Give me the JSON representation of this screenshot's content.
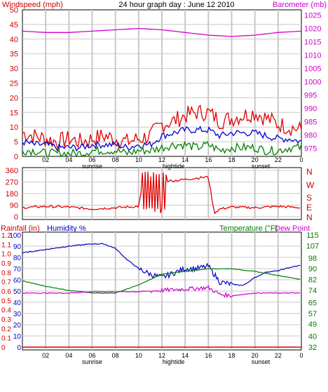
{
  "title": "24 hour graph day : June 12 2010",
  "panels": [
    {
      "id": "wind",
      "left_label": "Windspeed (mph)",
      "right_label": "Barometer (mb)"
    },
    {
      "id": "direction",
      "right_labels": [
        "N",
        "W",
        "S",
        "E",
        "N"
      ]
    },
    {
      "id": "rain",
      "left_label_rain": "Rainfall (in)",
      "left_label_humidity": "Humidity %",
      "right_label_temp": "Temperature (°F)",
      "right_label_dew": "Dew Point"
    }
  ],
  "colors": {
    "wind_axis": "#d00000",
    "baro_axis": "#d000d0",
    "humidity_axis": "#0000c0",
    "temp_axis": "#008000",
    "dew": "#d000d0",
    "gust": "#e00000",
    "speed": "#0000d0",
    "avg": "#008000",
    "grid": "#c8c8c8",
    "frame": "#000000"
  },
  "chart_data": [
    {
      "type": "line",
      "x_ticks": [
        "02",
        "04",
        "06",
        "08",
        "10",
        "12",
        "14",
        "16",
        "18",
        "20",
        "22",
        "0"
      ],
      "x_events": [
        {
          "label": "sunrise",
          "x_hour": 6
        },
        {
          "label": "hightide",
          "x_hour": 13
        },
        {
          "label": "sunset",
          "x_hour": 20.5
        }
      ],
      "y_left": {
        "label": "Windspeed (mph)",
        "ticks": [
          0,
          5,
          10,
          15,
          20,
          25,
          30,
          35,
          40,
          45,
          50
        ],
        "range": [
          0,
          50
        ]
      },
      "y_right": {
        "label": "Barometer (mb)",
        "ticks": [
          975,
          980,
          985,
          990,
          995,
          1000,
          1005,
          1010,
          1015,
          1020,
          1025
        ],
        "range": [
          972,
          1027
        ]
      },
      "series": [
        {
          "name": "gust",
          "axis": "left",
          "x": [
            0,
            1,
            2,
            3,
            4,
            5,
            6,
            7,
            8,
            9,
            10,
            11,
            12,
            13,
            14,
            15,
            16,
            17,
            18,
            19,
            20,
            21,
            22,
            23,
            24
          ],
          "values": [
            8,
            7,
            6,
            5,
            6,
            5,
            6,
            7,
            6,
            5,
            6,
            7,
            11,
            12,
            14,
            15,
            15,
            12,
            13,
            14,
            15,
            13,
            11,
            10,
            9
          ]
        },
        {
          "name": "average",
          "axis": "left",
          "x": [
            0,
            1,
            2,
            3,
            4,
            5,
            6,
            7,
            8,
            9,
            10,
            11,
            12,
            13,
            14,
            15,
            16,
            17,
            18,
            19,
            20,
            21,
            22,
            23,
            24
          ],
          "values": [
            5,
            4,
            4,
            3,
            3,
            3,
            4,
            4,
            4,
            3,
            4,
            4,
            7,
            8,
            9,
            9,
            9,
            7,
            8,
            8,
            8,
            7,
            6,
            6,
            5
          ]
        },
        {
          "name": "speed",
          "axis": "left",
          "x": [
            0,
            1,
            2,
            3,
            4,
            5,
            6,
            7,
            8,
            9,
            10,
            11,
            12,
            13,
            14,
            15,
            16,
            17,
            18,
            19,
            20,
            21,
            22,
            23,
            24
          ],
          "values": [
            2,
            2,
            1,
            1,
            1,
            1,
            2,
            2,
            2,
            1,
            2,
            2,
            3,
            4,
            4,
            3,
            4,
            2,
            3,
            3,
            3,
            2,
            2,
            3,
            3
          ]
        },
        {
          "name": "barometer",
          "axis": "right",
          "x": [
            0,
            2,
            4,
            6,
            8,
            10,
            12,
            14,
            16,
            18,
            20,
            22,
            24
          ],
          "values": [
            1019,
            1018.5,
            1018.5,
            1019,
            1019.5,
            1020,
            1019.5,
            1018.5,
            1017.5,
            1017,
            1017.5,
            1018.5,
            1019
          ]
        }
      ]
    },
    {
      "type": "line",
      "y_left": {
        "ticks": [
          0,
          90,
          180,
          270,
          360
        ],
        "range": [
          0,
          360
        ]
      },
      "series": [
        {
          "name": "wind direction",
          "values_x": [
            0,
            2,
            4,
            6,
            8,
            10,
            10.5,
            11,
            11.3,
            11.6,
            12,
            12.5,
            13,
            14,
            15,
            16,
            16.5,
            17,
            18,
            20,
            22,
            24
          ],
          "values": [
            70,
            80,
            75,
            60,
            70,
            80,
            330,
            40,
            320,
            30,
            300,
            280,
            280,
            290,
            300,
            310,
            30,
            60,
            75,
            70,
            80,
            70
          ]
        }
      ]
    },
    {
      "type": "line",
      "x_ticks": [
        "02",
        "04",
        "06",
        "08",
        "10",
        "12",
        "14",
        "16",
        "18",
        "20",
        "22",
        "0"
      ],
      "x_events": [
        {
          "label": "sunrise",
          "x_hour": 6
        },
        {
          "label": "hightide",
          "x_hour": 13
        },
        {
          "label": "sunset",
          "x_hour": 20.5
        }
      ],
      "y_left_rain": {
        "label": "Rainfall (in)",
        "ticks": [
          0,
          0.1,
          0.2,
          0.3,
          0.4,
          0.5,
          0.6,
          0.7,
          0.8,
          0.9,
          1.0,
          1.1,
          1.2
        ],
        "range": [
          0,
          1.2
        ]
      },
      "y_left_humidity": {
        "label": "Humidity %",
        "ticks": [
          0,
          10,
          20,
          30,
          40,
          50,
          60,
          70,
          80,
          90,
          100
        ],
        "range": [
          0,
          100
        ]
      },
      "y_right": {
        "label": "Temperature (°F)",
        "ticks": [
          32,
          40,
          49,
          57,
          65,
          74,
          82,
          90,
          98,
          107,
          115
        ],
        "range": [
          32,
          115
        ]
      },
      "series": [
        {
          "name": "humidity",
          "axis": "left_humidity",
          "x": [
            0,
            2,
            4,
            6,
            7,
            8,
            9,
            10,
            11,
            12,
            13,
            14,
            15,
            16,
            17,
            18,
            19,
            20,
            21,
            22,
            23,
            24
          ],
          "values": [
            84,
            87,
            90,
            92,
            92,
            88,
            78,
            70,
            65,
            62,
            66,
            70,
            70,
            72,
            58,
            56,
            55,
            62,
            67,
            68,
            71,
            73
          ]
        },
        {
          "name": "temperature",
          "axis": "right",
          "x": [
            0,
            2,
            4,
            6,
            8,
            10,
            12,
            14,
            16,
            18,
            20,
            22,
            24
          ],
          "values": [
            81,
            77,
            74,
            72,
            72,
            78,
            86,
            88,
            90,
            90,
            88,
            85,
            82
          ]
        },
        {
          "name": "dew point",
          "axis": "right",
          "x": [
            0,
            2,
            4,
            6,
            8,
            10,
            12,
            14,
            16,
            17,
            18,
            20,
            22,
            24
          ],
          "values": [
            72,
            72,
            72,
            73,
            73,
            73,
            74,
            75,
            76,
            71,
            70,
            72,
            72,
            72
          ]
        },
        {
          "name": "rainfall",
          "axis": "left_rain",
          "x": [
            0,
            24
          ],
          "values": [
            0,
            0
          ]
        }
      ]
    }
  ]
}
